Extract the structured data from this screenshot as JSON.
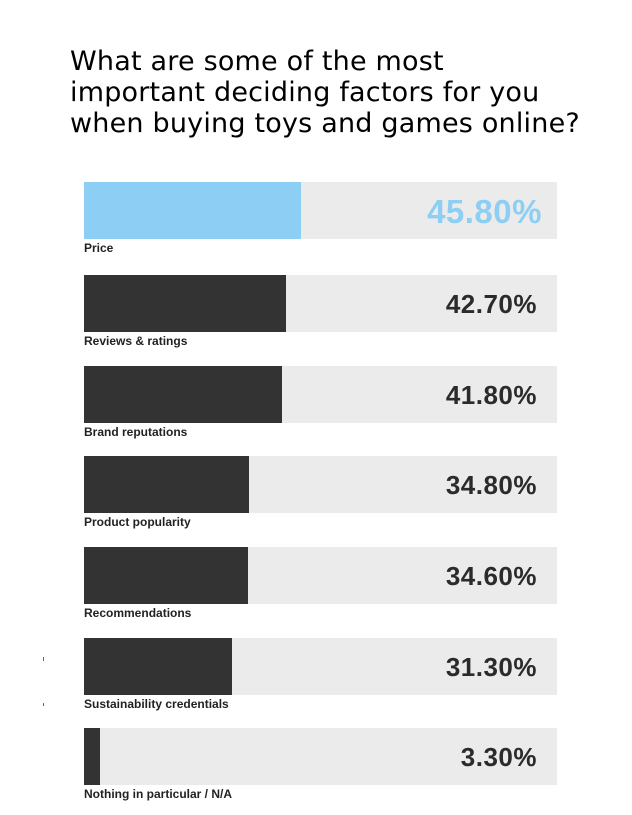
{
  "title_lines": [
    "What are some of the most",
    "important deciding factors for you",
    "when buying toys and games online?"
  ],
  "colors": {
    "bar": "#333333",
    "highlight": "#8dcff4",
    "track": "#ebebeb"
  },
  "chart_data": {
    "type": "bar",
    "orientation": "horizontal",
    "title": "What are some of the most important deciding factors for you when buying toys and games online?",
    "xlim": [
      0,
      100
    ],
    "grid": false,
    "categories": [
      "Price",
      "Reviews & ratings",
      "Brand reputations",
      "Product popularity",
      "Recommendations",
      "Sustainability credentials",
      "Nothing in particular / N/A"
    ],
    "values": [
      45.8,
      42.7,
      41.8,
      34.8,
      34.6,
      31.3,
      3.3
    ],
    "value_labels": [
      "45.80%",
      "42.70%",
      "41.80%",
      "34.80%",
      "34.60%",
      "31.30%",
      "3.30%"
    ],
    "highlighted_category": "Price"
  }
}
